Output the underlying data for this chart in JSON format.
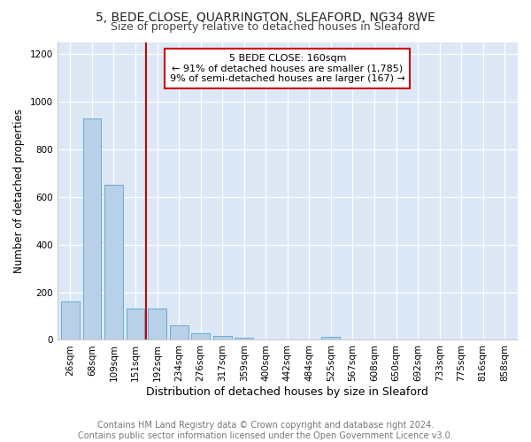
{
  "title1": "5, BEDE CLOSE, QUARRINGTON, SLEAFORD, NG34 8WE",
  "title2": "Size of property relative to detached houses in Sleaford",
  "xlabel": "Distribution of detached houses by size in Sleaford",
  "ylabel": "Number of detached properties",
  "categories": [
    "26sqm",
    "68sqm",
    "109sqm",
    "151sqm",
    "192sqm",
    "234sqm",
    "276sqm",
    "317sqm",
    "359sqm",
    "400sqm",
    "442sqm",
    "484sqm",
    "525sqm",
    "567sqm",
    "608sqm",
    "650sqm",
    "692sqm",
    "733sqm",
    "775sqm",
    "816sqm",
    "858sqm"
  ],
  "values": [
    160,
    930,
    650,
    130,
    130,
    62,
    28,
    15,
    10,
    0,
    0,
    0,
    12,
    0,
    0,
    0,
    0,
    0,
    0,
    0,
    0
  ],
  "bar_color": "#b8d0e8",
  "bar_edge_color": "#6aaad4",
  "vline_x": 3.5,
  "vline_color": "#cc0000",
  "annotation_text": "5 BEDE CLOSE: 160sqm\n← 91% of detached houses are smaller (1,785)\n9% of semi-detached houses are larger (167) →",
  "annotation_box_color": "#ffffff",
  "annotation_box_edge_color": "#cc0000",
  "ylim": [
    0,
    1250
  ],
  "yticks": [
    0,
    200,
    400,
    600,
    800,
    1000,
    1200
  ],
  "bg_color": "#dce8f5",
  "footer": "Contains HM Land Registry data © Crown copyright and database right 2024.\nContains public sector information licensed under the Open Government Licence v3.0.",
  "title1_fontsize": 10,
  "title2_fontsize": 9,
  "xlabel_fontsize": 9,
  "ylabel_fontsize": 8.5,
  "annotation_fontsize": 8,
  "footer_fontsize": 7,
  "tick_fontsize": 7.5
}
